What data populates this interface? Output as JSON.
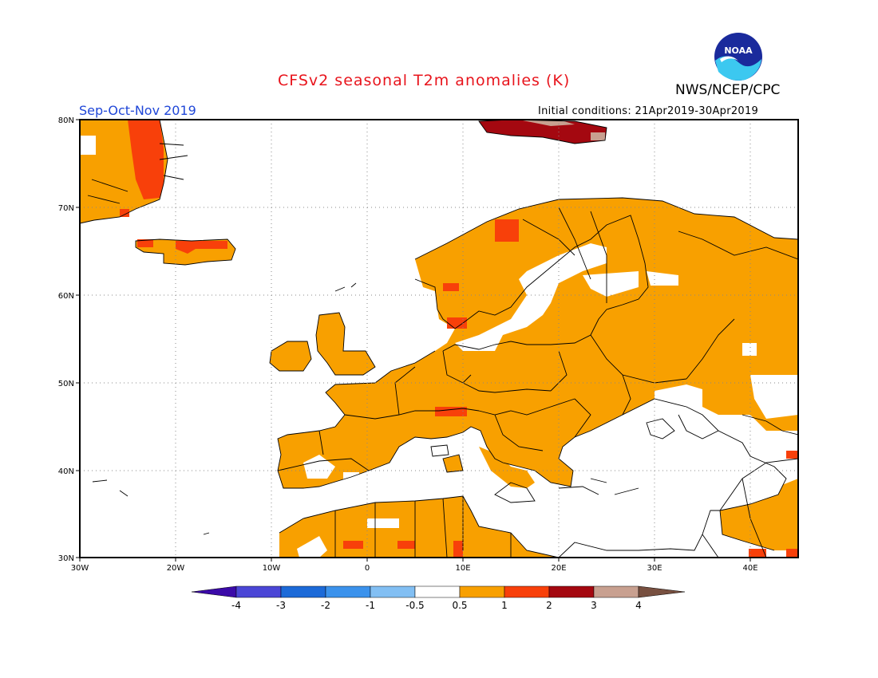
{
  "header": {
    "title": "CFSv2 seasonal T2m anomalies (K)",
    "agency": "NWS/NCEP/CPC",
    "season": "Sep-Oct-Nov 2019",
    "initial_conditions": "Initial conditions: 21Apr2019-30Apr2019",
    "logo_text": "NOAA",
    "title_color": "#e8141c",
    "season_color": "#2047d8"
  },
  "map": {
    "lon_labels": [
      "30W",
      "20W",
      "10W",
      "0",
      "10E",
      "20E",
      "30E",
      "40E"
    ],
    "lat_labels": [
      "80N",
      "70N",
      "60N",
      "50N",
      "40N",
      "30N"
    ],
    "lon_range": [
      -30,
      45
    ],
    "lat_range": [
      30,
      80
    ],
    "anomaly_regions": [
      {
        "name": "greenland",
        "level": "0.5-1"
      },
      {
        "name": "scandinavia",
        "level": "0.5-1"
      },
      {
        "name": "europe",
        "level": "0.5-1"
      },
      {
        "name": "russia",
        "level": "0.5-1"
      },
      {
        "name": "north-africa",
        "level": "0.5-1"
      },
      {
        "name": "svalbard",
        "level": "2-3"
      }
    ]
  },
  "legend": {
    "tick_labels": [
      "-4",
      "-3",
      "-2",
      "-1",
      "-0.5",
      "0.5",
      "1",
      "2",
      "3",
      "4"
    ],
    "colors": [
      "#3b0aa8",
      "#4b46d6",
      "#1c6ad8",
      "#3b92ec",
      "#82bff3",
      "#ffffff",
      "#f8a000",
      "#f8400a",
      "#a40810",
      "#c8a090",
      "#785040"
    ]
  }
}
